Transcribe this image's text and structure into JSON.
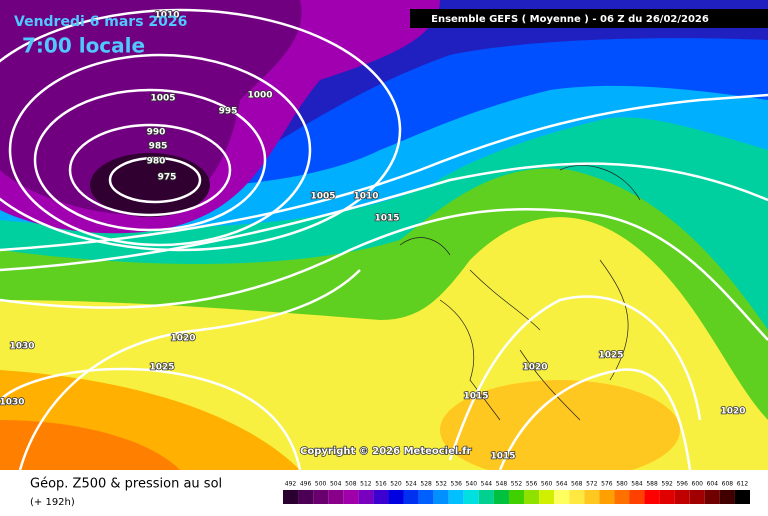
{
  "header": {
    "date": "Vendredi 6 mars 2026",
    "time": "7:00 locale",
    "run": "Ensemble GEFS  ( Moyenne )  -  06 Z du 26/02/2026"
  },
  "isobar_labels": [
    1010,
    1005,
    1000,
    995,
    990,
    985,
    980,
    975,
    1005,
    1010,
    1015,
    1020,
    1025,
    1030,
    1030,
    1020,
    1025,
    1015,
    1015,
    1020
  ],
  "copyright": "Copyright © 2026 Meteociel.fr",
  "caption": {
    "title": "Géop. Z500 & pression au sol",
    "lead": "(+ 192h)"
  },
  "scale": {
    "values": [
      492,
      496,
      500,
      504,
      508,
      512,
      516,
      520,
      524,
      528,
      532,
      536,
      540,
      544,
      548,
      552,
      556,
      560,
      564,
      568,
      572,
      576,
      580,
      584,
      588,
      592,
      596,
      600,
      604,
      608,
      612
    ],
    "colors": [
      "#2a0030",
      "#4b0055",
      "#6a006e",
      "#88008a",
      "#a000a8",
      "#7a00c0",
      "#3c00d0",
      "#0000e0",
      "#0030f0",
      "#0060ff",
      "#0090ff",
      "#00c0ff",
      "#00e0e0",
      "#00d090",
      "#00c040",
      "#40d000",
      "#90e000",
      "#d0f000",
      "#ffff60",
      "#ffe840",
      "#ffc820",
      "#ffa000",
      "#ff7000",
      "#ff4000",
      "#ff0000",
      "#e00000",
      "#c00000",
      "#a00000",
      "#700000",
      "#400000",
      "#000000"
    ]
  }
}
